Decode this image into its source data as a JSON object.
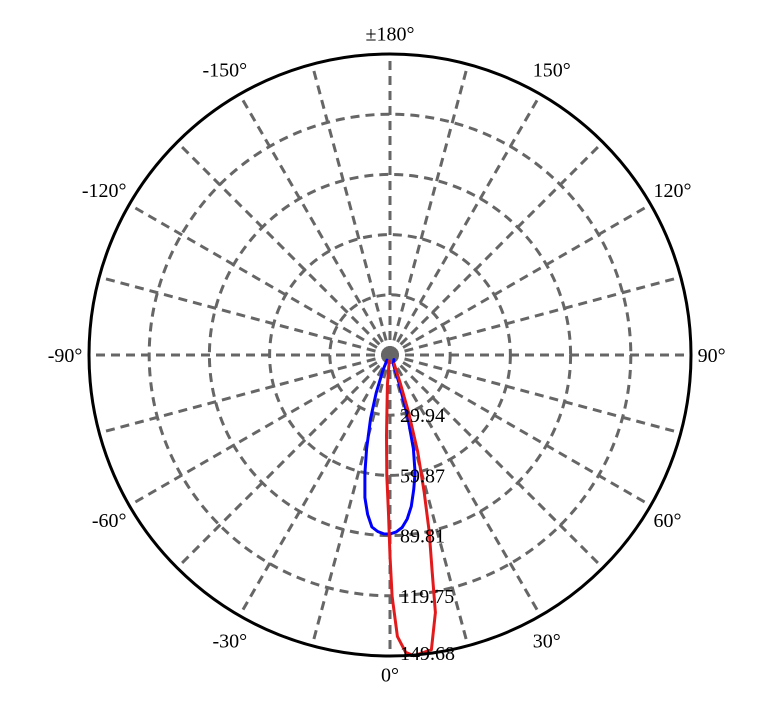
{
  "chart_data": {
    "type": "polar",
    "angle_unit": "degrees",
    "angle_labels": [
      {
        "angle": 0,
        "text": "0°"
      },
      {
        "angle": 30,
        "text": "30°"
      },
      {
        "angle": 60,
        "text": "60°"
      },
      {
        "angle": 90,
        "text": "90°"
      },
      {
        "angle": 120,
        "text": "120°"
      },
      {
        "angle": 150,
        "text": "150°"
      },
      {
        "angle": 180,
        "text": "±180°"
      },
      {
        "angle": -150,
        "text": "-150°"
      },
      {
        "angle": -120,
        "text": "-120°"
      },
      {
        "angle": -90,
        "text": "-90°"
      },
      {
        "angle": -60,
        "text": "-60°"
      },
      {
        "angle": -30,
        "text": "-30°"
      }
    ],
    "spoke_step_deg": 15,
    "radial_ticks": [
      {
        "value": 29.94,
        "text": "29.94"
      },
      {
        "value": 59.87,
        "text": "59.87"
      },
      {
        "value": 89.81,
        "text": "89.81"
      },
      {
        "value": 119.75,
        "text": "119.75"
      },
      {
        "value": 149.68,
        "text": "149.68"
      }
    ],
    "rlim": [
      0,
      149.68
    ],
    "grid": true,
    "colors": {
      "grid": "#666666",
      "frame": "#000000"
    },
    "series": [
      {
        "color": "#0000ff",
        "points": [
          [
            -30,
            3
          ],
          [
            -25,
            8
          ],
          [
            -20,
            20
          ],
          [
            -17,
            33
          ],
          [
            -14,
            48
          ],
          [
            -12,
            60
          ],
          [
            -10,
            72
          ],
          [
            -8,
            80
          ],
          [
            -6,
            86
          ],
          [
            -4,
            88
          ],
          [
            -2,
            89
          ],
          [
            0,
            89
          ],
          [
            2,
            88
          ],
          [
            4,
            86
          ],
          [
            6,
            82
          ],
          [
            8,
            76
          ],
          [
            10,
            68
          ],
          [
            12,
            60
          ],
          [
            14,
            48
          ],
          [
            16,
            32
          ],
          [
            18,
            14
          ],
          [
            20,
            5
          ],
          [
            40,
            3
          ]
        ]
      },
      {
        "color": "#e31a1c",
        "points": [
          [
            -8,
            3
          ],
          [
            -5,
            15
          ],
          [
            -2.5,
            40
          ],
          [
            -1.5,
            60
          ],
          [
            -0.5,
            80
          ],
          [
            0,
            100
          ],
          [
            0.5,
            120
          ],
          [
            1.5,
            140
          ],
          [
            3,
            148
          ],
          [
            4.5,
            150
          ],
          [
            6.2,
            149
          ],
          [
            8,
            148
          ],
          [
            10,
            130
          ],
          [
            11,
            110
          ],
          [
            12.5,
            90
          ],
          [
            14,
            70
          ],
          [
            16,
            50
          ],
          [
            18,
            30
          ],
          [
            20,
            15
          ],
          [
            25,
            5
          ]
        ]
      }
    ]
  }
}
